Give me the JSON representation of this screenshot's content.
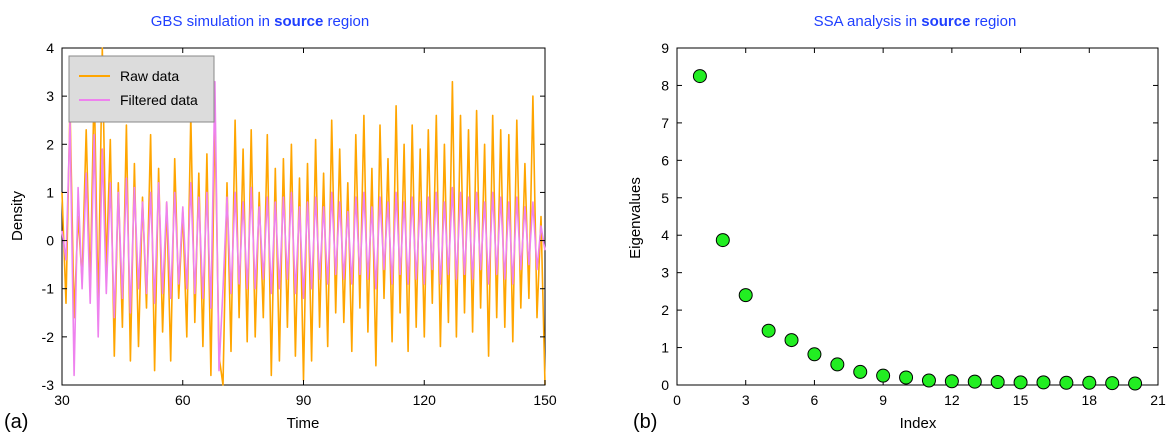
{
  "chart_data": [
    {
      "type": "line",
      "panel_label": "(a)",
      "title_parts": [
        "GBS simulation in ",
        "source",
        " region"
      ],
      "xlabel": "Time",
      "ylabel": "Density",
      "xlim": [
        30,
        150
      ],
      "ylim": [
        -3,
        4
      ],
      "xticks": [
        30,
        60,
        90,
        120,
        150
      ],
      "yticks": [
        -3,
        -2,
        -1,
        0,
        1,
        2,
        3,
        4
      ],
      "legend_position": "top-left",
      "series": [
        {
          "name": "Raw data",
          "color": "#ffa500",
          "x": [
            30,
            31,
            32,
            33,
            34,
            35,
            36,
            37,
            38,
            39,
            40,
            41,
            42,
            43,
            44,
            45,
            46,
            47,
            48,
            49,
            50,
            51,
            52,
            53,
            54,
            55,
            56,
            57,
            58,
            59,
            60,
            61,
            62,
            63,
            64,
            65,
            66,
            67,
            68,
            69,
            70,
            71,
            72,
            73,
            74,
            75,
            76,
            77,
            78,
            79,
            80,
            81,
            82,
            83,
            84,
            85,
            86,
            87,
            88,
            89,
            90,
            91,
            92,
            93,
            94,
            95,
            96,
            97,
            98,
            99,
            100,
            101,
            102,
            103,
            104,
            105,
            106,
            107,
            108,
            109,
            110,
            111,
            112,
            113,
            114,
            115,
            116,
            117,
            118,
            119,
            120,
            121,
            122,
            123,
            124,
            125,
            126,
            127,
            128,
            129,
            130,
            131,
            132,
            133,
            134,
            135,
            136,
            137,
            138,
            139,
            140,
            141,
            142,
            143,
            144,
            145,
            146,
            147,
            148,
            149,
            150
          ],
          "values": [
            1.0,
            -1.3,
            2.8,
            -1.6,
            0.5,
            -0.8,
            2.3,
            -1.0,
            3.3,
            -1.5,
            4.0,
            -0.6,
            2.1,
            -2.4,
            1.2,
            -1.8,
            2.4,
            -2.5,
            1.6,
            -2.2,
            0.9,
            -1.4,
            2.2,
            -2.7,
            1.5,
            -1.9,
            0.8,
            -2.5,
            1.7,
            -1.2,
            0.6,
            -2.0,
            2.6,
            -1.7,
            1.4,
            -2.2,
            1.8,
            -2.8,
            2.6,
            -2.4,
            -3.0,
            1.2,
            -2.3,
            2.5,
            -1.6,
            1.9,
            -2.1,
            2.3,
            -2.0,
            1.0,
            -1.6,
            2.2,
            -2.8,
            1.5,
            -2.5,
            1.7,
            -1.8,
            2.0,
            -2.4,
            1.3,
            -2.9,
            1.6,
            -2.5,
            2.1,
            -1.8,
            1.4,
            -2.2,
            2.5,
            -1.5,
            1.9,
            -1.7,
            1.2,
            -2.3,
            2.2,
            -1.4,
            2.6,
            -1.9,
            1.5,
            -2.6,
            2.4,
            -1.2,
            1.7,
            -2.1,
            2.8,
            -1.5,
            2.0,
            -2.3,
            2.4,
            -1.8,
            1.9,
            -2.0,
            2.3,
            -1.3,
            2.6,
            -2.2,
            2.0,
            -1.7,
            3.3,
            -2.0,
            2.6,
            -1.5,
            2.3,
            -1.9,
            2.7,
            -1.4,
            2.0,
            -2.4,
            2.6,
            -1.6,
            2.3,
            -1.8,
            2.2,
            -2.1,
            2.5,
            -1.4,
            1.6,
            -1.2,
            3.0,
            -1.6,
            0.5,
            -3.0
          ]
        },
        {
          "name": "Filtered data",
          "color": "#ee82ee",
          "x": [
            30,
            31,
            32,
            33,
            34,
            35,
            36,
            37,
            38,
            39,
            40,
            41,
            42,
            43,
            44,
            45,
            46,
            47,
            48,
            49,
            50,
            51,
            52,
            53,
            54,
            55,
            56,
            57,
            58,
            59,
            60,
            61,
            62,
            63,
            64,
            65,
            66,
            67,
            68,
            69,
            70,
            71,
            72,
            73,
            74,
            75,
            76,
            77,
            78,
            79,
            80,
            81,
            82,
            83,
            84,
            85,
            86,
            87,
            88,
            89,
            90,
            91,
            92,
            93,
            94,
            95,
            96,
            97,
            98,
            99,
            100,
            101,
            102,
            103,
            104,
            105,
            106,
            107,
            108,
            109,
            110,
            111,
            112,
            113,
            114,
            115,
            116,
            117,
            118,
            119,
            120,
            121,
            122,
            123,
            124,
            125,
            126,
            127,
            128,
            129,
            130,
            131,
            132,
            133,
            134,
            135,
            136,
            137,
            138,
            139,
            140,
            141,
            142,
            143,
            144,
            145,
            146,
            147,
            148,
            149,
            150
          ],
          "values": [
            0.2,
            -0.4,
            2.5,
            -2.8,
            1.1,
            -1.0,
            1.4,
            -1.3,
            2.2,
            -2.0,
            1.9,
            -1.1,
            1.2,
            -1.6,
            1.0,
            -1.2,
            1.3,
            -1.5,
            1.1,
            -1.0,
            0.8,
            -1.1,
            1.0,
            -1.3,
            1.2,
            -1.1,
            0.8,
            -1.2,
            1.0,
            -0.9,
            0.7,
            -1.0,
            1.2,
            -1.1,
            0.9,
            -1.2,
            1.0,
            -1.4,
            3.3,
            -2.7,
            -1.0,
            0.9,
            -1.1,
            1.0,
            -0.9,
            0.8,
            -1.0,
            1.1,
            -1.0,
            0.7,
            -0.8,
            0.9,
            -1.1,
            0.8,
            -1.0,
            0.9,
            -0.8,
            1.0,
            -1.1,
            0.7,
            -1.2,
            0.8,
            -1.0,
            0.9,
            -0.8,
            0.7,
            -0.9,
            1.0,
            -0.7,
            0.8,
            -0.8,
            0.6,
            -0.9,
            0.9,
            -0.7,
            1.0,
            -0.8,
            0.7,
            -1.0,
            0.9,
            -0.6,
            0.8,
            -0.9,
            1.0,
            -0.7,
            0.8,
            -0.9,
            0.9,
            -0.8,
            0.8,
            -0.9,
            0.9,
            -0.6,
            1.0,
            -0.9,
            0.8,
            -0.7,
            1.1,
            -0.8,
            1.0,
            -0.7,
            0.9,
            -0.8,
            1.0,
            -0.6,
            0.8,
            -0.9,
            1.0,
            -0.7,
            0.9,
            -0.8,
            0.8,
            -0.9,
            0.9,
            -0.6,
            0.7,
            -0.5,
            0.8,
            -0.6,
            0.3,
            -0.2
          ]
        }
      ]
    },
    {
      "type": "scatter",
      "panel_label": "(b)",
      "title_parts": [
        "SSA analysis in ",
        "source",
        " region"
      ],
      "xlabel": "Index",
      "ylabel": "Eigenvalues",
      "xlim": [
        0,
        21
      ],
      "ylim": [
        0,
        9
      ],
      "xticks": [
        0,
        3,
        6,
        9,
        12,
        15,
        18,
        21
      ],
      "yticks": [
        0,
        1,
        2,
        3,
        4,
        5,
        6,
        7,
        8,
        9
      ],
      "marker_color": "#22ee22",
      "x": [
        1,
        2,
        3,
        4,
        5,
        6,
        7,
        8,
        9,
        10,
        11,
        12,
        13,
        14,
        15,
        16,
        17,
        18,
        19,
        20
      ],
      "values": [
        8.25,
        3.87,
        2.4,
        1.45,
        1.2,
        0.82,
        0.55,
        0.35,
        0.25,
        0.2,
        0.12,
        0.1,
        0.09,
        0.08,
        0.07,
        0.07,
        0.06,
        0.06,
        0.05,
        0.04
      ]
    }
  ]
}
